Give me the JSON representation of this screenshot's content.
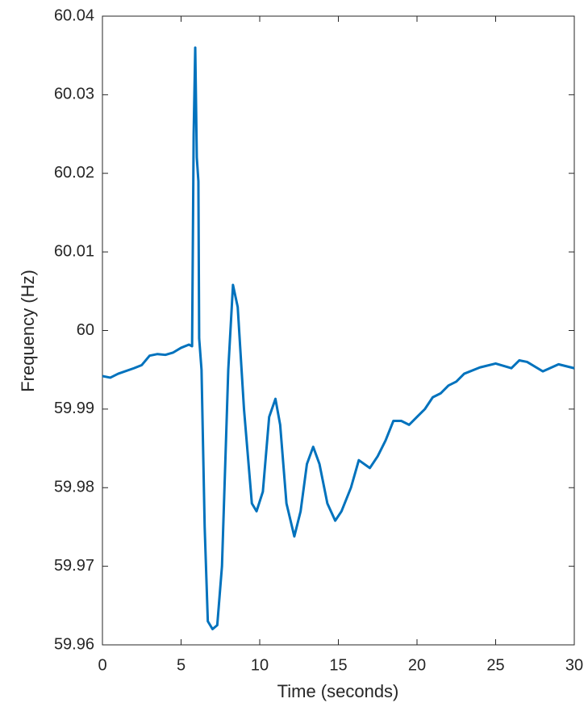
{
  "chart_data": {
    "type": "line",
    "xlabel": "Time (seconds)",
    "ylabel": "Frequency (Hz)",
    "xlim": [
      0,
      30
    ],
    "xticks": [
      0,
      5,
      10,
      15,
      20,
      25,
      30
    ],
    "ylim": [
      59.96,
      60.04
    ],
    "yticks": [
      59.96,
      59.97,
      59.98,
      59.99,
      60,
      60.01,
      60.02,
      60.03,
      60.04
    ],
    "grid": false,
    "x": [
      0,
      0.5,
      1,
      2,
      2.5,
      3,
      3.5,
      4,
      4.5,
      5,
      5.5,
      5.7,
      5.8,
      5.9,
      6.0,
      6.1,
      6.15,
      6.3,
      6.5,
      6.7,
      7.0,
      7.3,
      7.6,
      8.0,
      8.3,
      8.6,
      9.0,
      9.5,
      9.8,
      10.2,
      10.6,
      11.0,
      11.3,
      11.7,
      12.2,
      12.6,
      13.0,
      13.4,
      13.8,
      14.3,
      14.8,
      15.2,
      15.8,
      16.3,
      17.0,
      17.5,
      18.0,
      18.5,
      19.0,
      19.5,
      20.0,
      20.5,
      21.0,
      21.5,
      22.0,
      22.5,
      23.0,
      24.0,
      25.0,
      26.0,
      26.5,
      27.0,
      28.0,
      29.0,
      30.0
    ],
    "series": [
      {
        "name": "Frequency",
        "color": "#0072bd",
        "values": [
          59.9942,
          59.994,
          59.9945,
          59.9952,
          59.9956,
          59.9968,
          59.997,
          59.9969,
          59.9972,
          59.9978,
          59.9982,
          59.998,
          60.025,
          60.036,
          60.022,
          60.019,
          59.999,
          59.995,
          59.975,
          59.963,
          59.962,
          59.9625,
          59.97,
          59.995,
          60.0058,
          60.003,
          59.99,
          59.978,
          59.977,
          59.9795,
          59.989,
          59.9913,
          59.988,
          59.978,
          59.9738,
          59.977,
          59.983,
          59.9852,
          59.983,
          59.978,
          59.9758,
          59.977,
          59.98,
          59.9835,
          59.9825,
          59.984,
          59.986,
          59.9885,
          59.9885,
          59.988,
          59.989,
          59.99,
          59.9915,
          59.992,
          59.993,
          59.9935,
          59.9945,
          59.9953,
          59.9958,
          59.9952,
          59.9962,
          59.996,
          59.9948,
          59.9957,
          59.9952
        ]
      }
    ]
  }
}
